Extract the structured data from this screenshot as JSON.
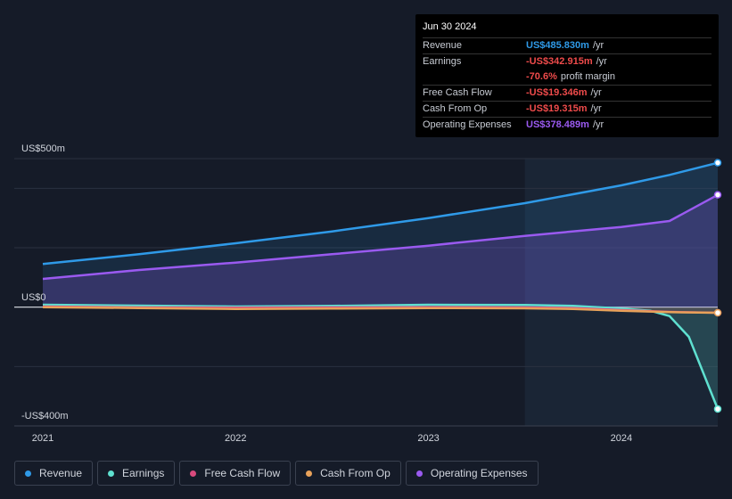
{
  "tooltip": {
    "date": "Jun 30 2024",
    "rows": [
      {
        "label": "Revenue",
        "value": "US$485.830m",
        "unit": "/yr",
        "color": "#2f9ae8"
      },
      {
        "label": "Earnings",
        "value": "-US$342.915m",
        "unit": "/yr",
        "color": "#ef4b4b"
      },
      {
        "label": "",
        "value": "-70.6%",
        "unit": "profit margin",
        "color": "#ef4b4b"
      },
      {
        "label": "Free Cash Flow",
        "value": "-US$19.346m",
        "unit": "/yr",
        "color": "#ef4b4b"
      },
      {
        "label": "Cash From Op",
        "value": "-US$19.315m",
        "unit": "/yr",
        "color": "#ef4b4b"
      },
      {
        "label": "Operating Expenses",
        "value": "US$378.489m",
        "unit": "/yr",
        "color": "#9a5af0"
      }
    ]
  },
  "chart_data": {
    "type": "area",
    "y_tick_labels": [
      "US$500m",
      "US$0",
      "-US$400m"
    ],
    "x_tick_labels": [
      "2021",
      "2022",
      "2023",
      "2024"
    ],
    "ylim": [
      -400,
      500
    ],
    "xlim": [
      2021.0,
      2024.5
    ],
    "highlight_start": 2023.5,
    "series": [
      {
        "name": "Revenue",
        "color": "#2f9ae8",
        "x": [
          2021.0,
          2021.5,
          2022.0,
          2022.5,
          2023.0,
          2023.5,
          2024.0,
          2024.25,
          2024.5
        ],
        "values": [
          145,
          178,
          215,
          255,
          300,
          350,
          410,
          445,
          486
        ]
      },
      {
        "name": "Earnings",
        "color": "#5fe0d0",
        "x": [
          2021.0,
          2021.5,
          2022.0,
          2022.5,
          2023.0,
          2023.5,
          2023.75,
          2024.0,
          2024.15,
          2024.25,
          2024.35,
          2024.5
        ],
        "values": [
          8,
          5,
          2,
          4,
          8,
          7,
          4,
          -5,
          -12,
          -30,
          -100,
          -343
        ]
      },
      {
        "name": "Free Cash Flow",
        "color": "#d94a7d",
        "x": [
          2021.0,
          2021.5,
          2022.0,
          2022.5,
          2023.0,
          2023.5,
          2023.75,
          2024.0,
          2024.25,
          2024.5
        ],
        "values": [
          2,
          -1,
          -2,
          -1,
          0,
          -1,
          -3,
          -10,
          -16,
          -19
        ]
      },
      {
        "name": "Cash From Op",
        "color": "#e8a25a",
        "x": [
          2021.0,
          2021.5,
          2022.0,
          2022.5,
          2023.0,
          2023.5,
          2023.75,
          2024.0,
          2024.25,
          2024.5
        ],
        "values": [
          0,
          -3,
          -6,
          -5,
          -3,
          -4,
          -6,
          -12,
          -17,
          -19
        ]
      },
      {
        "name": "Operating Expenses",
        "color": "#9a5af0",
        "x": [
          2021.0,
          2021.5,
          2022.0,
          2022.5,
          2023.0,
          2023.5,
          2024.0,
          2024.25,
          2024.5
        ],
        "values": [
          95,
          125,
          150,
          178,
          207,
          240,
          270,
          290,
          378
        ]
      }
    ]
  }
}
